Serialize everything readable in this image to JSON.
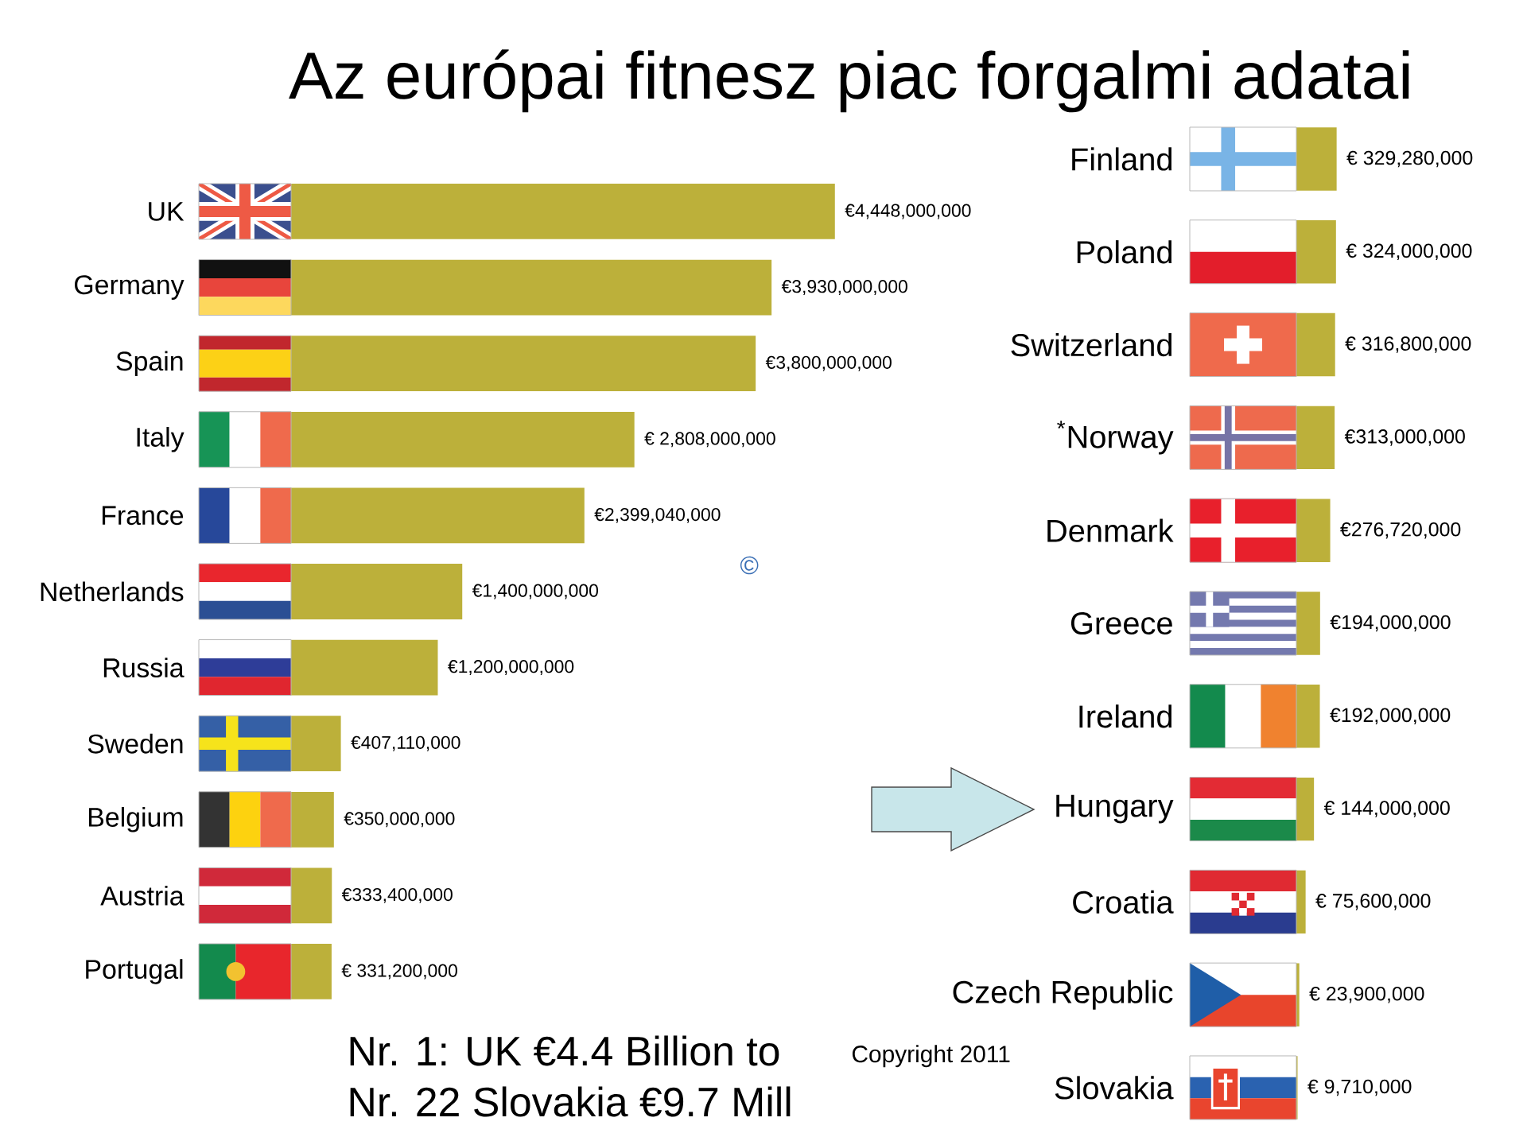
{
  "chart_data": [
    {
      "type": "bar",
      "orientation": "horizontal",
      "title": "Az európai fitnesz piac forgalmi adatai",
      "categories": [
        "UK",
        "Germany",
        "Spain",
        "Italy",
        "France",
        "Netherlands",
        "Russia",
        "Sweden",
        "Belgium",
        "Austria",
        "Portugal"
      ],
      "values": [
        4448000000,
        3930000000,
        3800000000,
        2808000000,
        2399040000,
        1400000000,
        1200000000,
        407110000,
        350000000,
        333400000,
        331200000
      ],
      "value_labels": [
        "€4,448,000,000",
        "€3,930,000,000",
        "€3,800,000,000",
        "€ 2,808,000,000",
        "€2,399,040,000",
        "€1,400,000,000",
        "€1,200,000,000",
        "€407,110,000",
        "€350,000,000",
        "€333,400,000",
        "€ 331,200,000"
      ],
      "color": "#bcb03a",
      "annotations": [
        "Nr. 1: UK €4.4 Billion to",
        "Nr. 22 Slovakia €9.7 Mill",
        "Copyright 2011",
        "©"
      ]
    },
    {
      "type": "bar",
      "orientation": "horizontal",
      "categories": [
        "Finland",
        "Poland",
        "Switzerland",
        "$^{*}$Norway",
        "Denmark",
        "Greece",
        "Ireland",
        "Hungary",
        "Croatia",
        "Czech Republic",
        "Slovakia"
      ],
      "values": [
        329280000,
        324000000,
        316800000,
        313000000,
        276720000,
        194000000,
        192000000,
        144000000,
        75600000,
        23900000,
        9710000
      ],
      "value_labels": [
        "€ 329,280,000",
        "€ 324,000,000",
        "€ 316,800,000",
        "€313,000,000",
        "€276,720,000",
        "€194,000,000",
        "€192,000,000",
        "€ 144,000,000",
        "€ 75,600,000",
        "€ 23,900,000",
        "€ 9,710,000"
      ],
      "color": "#bcb03a"
    }
  ]
}
